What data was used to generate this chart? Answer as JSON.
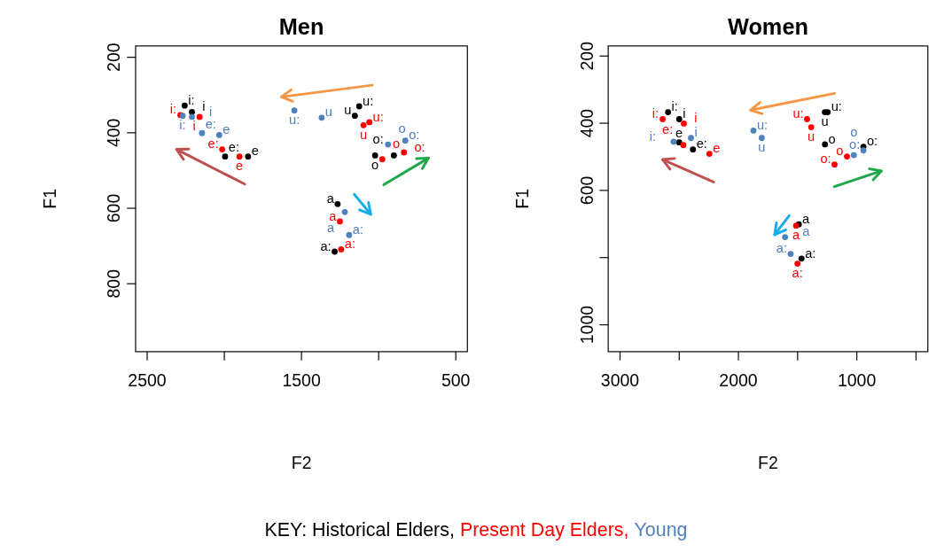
{
  "chart_data": [
    {
      "type": "scatter",
      "title": "Men",
      "xlabel": "F2",
      "ylabel": "F1",
      "marker": "circle",
      "legend_title": "KEY:",
      "xlim": [
        2575,
        425
      ],
      "ylim": [
        980,
        170
      ],
      "xticks": [
        2500,
        {
          "value": 2000,
          "label": null
        },
        1500,
        {
          "value": 1000,
          "label": null
        },
        500
      ],
      "yticks": [
        200,
        400,
        600,
        800
      ],
      "series": [
        {
          "name": "Historical Elders,",
          "color": "#000000",
          "x": [
            2257,
            2210,
            1995,
            1846,
            1126,
            1154,
            901,
            1023,
            1285,
            1266
          ],
          "values": [
            328,
            345,
            463,
            463,
            330,
            355,
            460,
            460,
            715,
            589
          ],
          "value_labels": [
            "i:",
            "i",
            "e:",
            "e",
            "u:",
            "u",
            "o:",
            "o",
            "a:",
            "a"
          ]
        },
        {
          "name": "Present Day Elders,",
          "color": "#ff0000",
          "x": [
            2285,
            2160,
            2014,
            1902,
            1060,
            1098,
            836,
            976,
            1243,
            1251
          ],
          "values": [
            353,
            358,
            444,
            463,
            372,
            380,
            452,
            470,
            709,
            635
          ],
          "value_labels": [
            "i:",
            "i",
            "e:",
            "e",
            "u:",
            "u",
            "o:",
            "o",
            "a:",
            "a"
          ]
        },
        {
          "name": "Young",
          "color": "#4f81bd",
          "x": [
            2270,
            2210,
            2145,
            2033,
            1546,
            1369,
            827,
            939,
            1191,
            1219
          ],
          "values": [
            355,
            358,
            401,
            406,
            341,
            360,
            421,
            431,
            671,
            610
          ],
          "value_labels": [
            "i:",
            "i",
            "e:",
            "e",
            "u:",
            "u",
            "o:",
            "o",
            "a:",
            "a"
          ]
        }
      ]
    },
    {
      "type": "scatter",
      "title": "Women",
      "xlabel": "F2",
      "ylabel": "F1",
      "marker": "circle",
      "xlim": [
        3100,
        400
      ],
      "ylim": [
        1080,
        170
      ],
      "xticks": [
        3000,
        {
          "value": 2500,
          "label": null
        },
        2000,
        {
          "value": 1500,
          "label": null
        },
        1000,
        {
          "value": 500,
          "label": null
        }
      ],
      "yticks": [
        200,
        400,
        600,
        {
          "value": 800,
          "label": null
        },
        1000
      ],
      "series": [
        {
          "color": "#000000",
          "x": [
            2594,
            2500,
            2384,
            2500,
            1246,
            1270,
            944,
            1269,
            1467,
            1490
          ],
          "values": [
            367,
            388,
            478,
            457,
            367,
            367,
            470,
            463,
            803,
            701
          ],
          "value_labels": [
            "i:",
            "i",
            "e:",
            "e",
            "u:",
            "u",
            "o:",
            "o",
            "a:",
            "a"
          ]
        },
        {
          "color": "#ff0000",
          "x": [
            2640,
            2461,
            2465,
            2245,
            1420,
            1385,
            1188,
            1083,
            1501,
            1513
          ],
          "values": [
            388,
            401,
            465,
            491,
            388,
            412,
            523,
            499,
            818,
            705
          ],
          "value_labels": [
            "i:",
            "i",
            "e:",
            "e",
            "u:",
            "u",
            "o:",
            "o",
            "a:",
            "a"
          ]
        },
        {
          "color": "#4f81bd",
          "x": [
            2547,
            2401,
            null,
            null,
            1873,
            1803,
            944,
            1025,
            1559,
            1606
          ],
          "values": [
            455,
            444,
            null,
            null,
            422,
            444,
            481,
            495,
            789,
            739
          ],
          "value_labels": [
            "i:",
            "i",
            null,
            null,
            "u:",
            "u",
            "o:",
            "o",
            "a:",
            "a"
          ]
        }
      ]
    }
  ]
}
